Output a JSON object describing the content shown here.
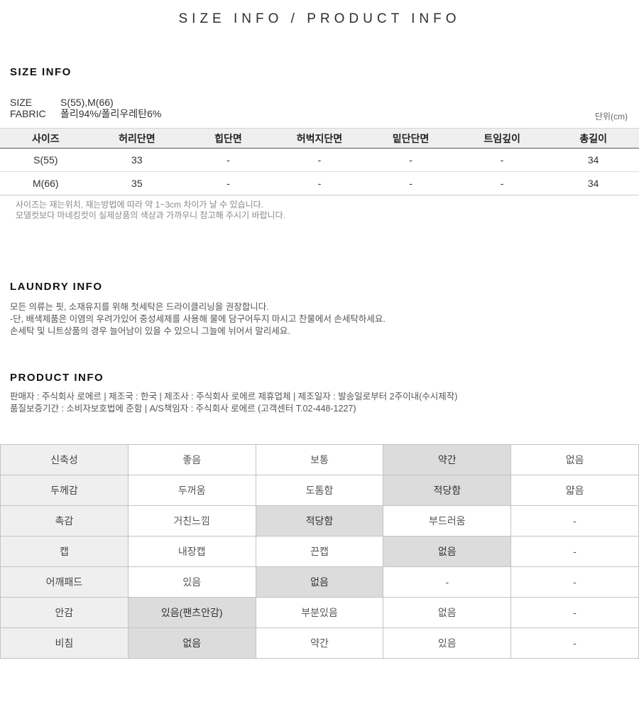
{
  "page_title": "SIZE INFO / PRODUCT INFO",
  "size_info": {
    "heading": "SIZE INFO",
    "fields": [
      {
        "label": "SIZE",
        "value": "S(55),M(66)"
      },
      {
        "label": "FABRIC",
        "value": "폴리94%/폴리우레탄6%"
      }
    ],
    "unit_note": "단위(cm)",
    "table": {
      "headers": [
        "사이즈",
        "허리단면",
        "힙단면",
        "허벅지단면",
        "밑단단면",
        "트임깊이",
        "총길이"
      ],
      "rows": [
        [
          "S(55)",
          "33",
          "-",
          "-",
          "-",
          "-",
          "34"
        ],
        [
          "M(66)",
          "35",
          "-",
          "-",
          "-",
          "-",
          "34"
        ]
      ]
    },
    "notes": [
      "사이즈는 재는위치, 재는방법에 따라 약 1~3cm 차이가 날 수 있습니다.",
      "모델컷보다 마네킹컷이 실제상품의 색상과 가까우니 참고해 주시기 바랍니다."
    ]
  },
  "laundry_info": {
    "heading": "LAUNDRY INFO",
    "lines": [
      "모든 의류는 핏, 소재유지를 위해 첫세탁은 드라이클리닝을 권장합니다.",
      "-단, 배색제품은 이염의 우려가있어 중성세제를 사용해 물에 담구어두지 마시고 찬물에서 손세탁하세요.",
      "손세탁 및 니트상품의 경우 늘어남이 있을 수 있으니 그늘에 뉘어서 말리세요."
    ]
  },
  "product_info": {
    "heading": "PRODUCT INFO",
    "lines": [
      "판매자 : 주식회사 로에르 | 제조국 : 한국 | 제조사 : 주식회사 로에르 제휴업체 | 제조일자 : 발송일로부터 2주이내(수시제작)",
      "품질보증기간 : 소비자보호법에 준함 | A/S책임자 : 주식회사 로에르 (고객센터 T.02-448-1227)"
    ]
  },
  "attributes_table": {
    "rows": [
      {
        "label": "신축성",
        "options": [
          "좋음",
          "보통",
          "약간",
          "없음"
        ],
        "selected": 2
      },
      {
        "label": "두께감",
        "options": [
          "두꺼움",
          "도톰함",
          "적당함",
          "얇음"
        ],
        "selected": 2
      },
      {
        "label": "촉감",
        "options": [
          "거친느낌",
          "적당함",
          "부드러움",
          "-"
        ],
        "selected": 1
      },
      {
        "label": "캡",
        "options": [
          "내장캡",
          "끈캡",
          "없음",
          "-"
        ],
        "selected": 2
      },
      {
        "label": "어깨패드",
        "options": [
          "있음",
          "없음",
          "-",
          "-"
        ],
        "selected": 1
      },
      {
        "label": "안감",
        "options": [
          "있음(팬츠안감)",
          "부분있음",
          "없음",
          "-"
        ],
        "selected": 0
      },
      {
        "label": "비침",
        "options": [
          "없음",
          "약간",
          "있음",
          "-"
        ],
        "selected": 0
      }
    ]
  },
  "colors": {
    "heading_text": "#111111",
    "body_text": "#555555",
    "muted_text": "#8a8a8a",
    "table_header_bg": "#efefef",
    "label_cell_bg": "#efefef",
    "selected_cell_bg": "#dcdcdc",
    "border_light": "#cccccc",
    "border_dark": "#555555"
  }
}
